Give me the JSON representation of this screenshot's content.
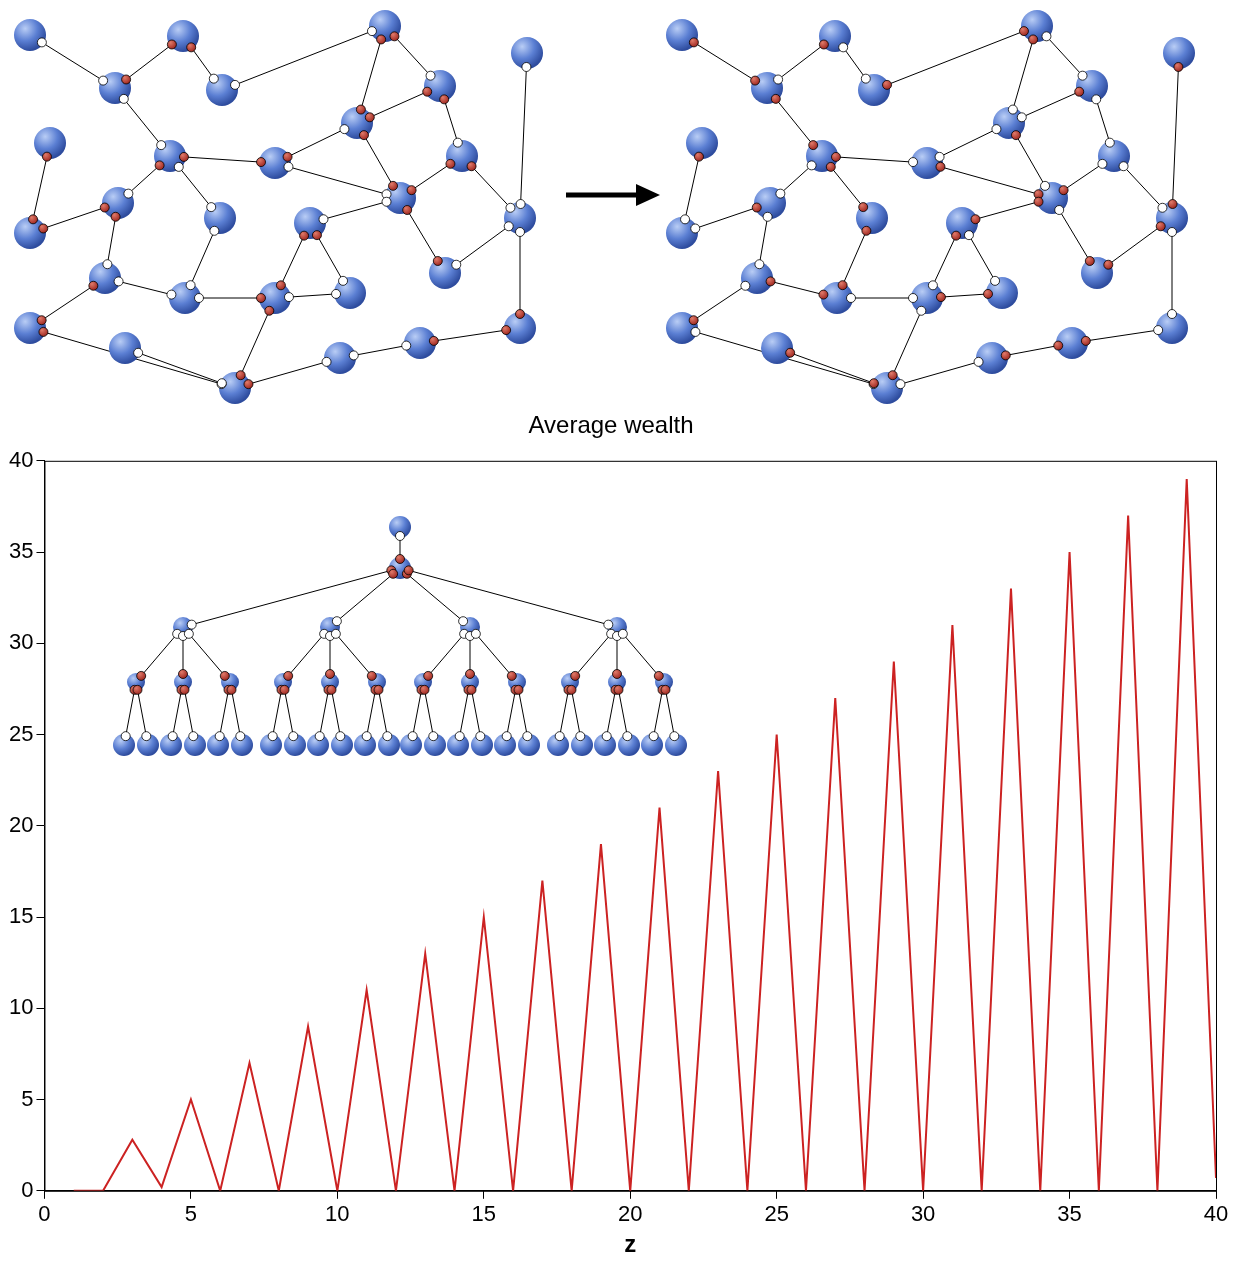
{
  "chart_data": {
    "type": "line",
    "title": "Average wealth",
    "x_label": "z",
    "x": [
      1,
      2,
      3,
      4,
      5,
      6,
      7,
      8,
      9,
      10,
      11,
      12,
      13,
      14,
      15,
      16,
      17,
      18,
      19,
      20,
      21,
      22,
      23,
      24,
      25,
      26,
      27,
      28,
      29,
      30,
      31,
      32,
      33,
      34,
      35,
      36,
      37,
      38,
      39,
      40
    ],
    "values": [
      0,
      0,
      2.8,
      0.2,
      5,
      0,
      7,
      0,
      9,
      0,
      11,
      0,
      13,
      0,
      15,
      0,
      17,
      0,
      19,
      0,
      21,
      0,
      23,
      0,
      25,
      0,
      27,
      0,
      29,
      0,
      31,
      0,
      33,
      0,
      35,
      0,
      37,
      0,
      39,
      0.7
    ],
    "color": "#cc2222",
    "xlim": [
      0,
      40
    ],
    "xticks": [
      0,
      5,
      10,
      15,
      20,
      25,
      30,
      35,
      40
    ],
    "ylim": [
      0,
      40
    ],
    "yticks": [
      0,
      5,
      10,
      15,
      20,
      25,
      30,
      35,
      40
    ],
    "grid": false
  }
}
